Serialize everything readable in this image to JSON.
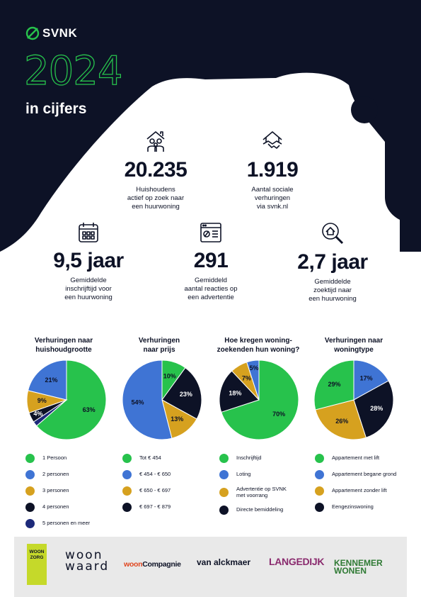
{
  "header": {
    "brand": "SVNK",
    "year": "2024",
    "subtitle": "in cijfers"
  },
  "stats": [
    {
      "icon": "family-house-icon",
      "value": "20.235",
      "label": "Huishoudens\nactief op zoek naar\neen huurwoning"
    },
    {
      "icon": "handshake-house-icon",
      "value": "1.919",
      "label": "Aantal sociale\nverhuringen\nvia svnk.nl"
    },
    {
      "icon": "calendar-icon",
      "value": "9,5 jaar",
      "label": "Gemiddelde\ninschrijftijd voor\neen huurwoning"
    },
    {
      "icon": "browser-window-icon",
      "value": "291",
      "label": "Gemiddeld\naantal reacties op\neen advertentie"
    },
    {
      "icon": "magnifier-house-icon",
      "value": "2,7 jaar",
      "label": "Gemiddelde\nzoektijd naar\neen huurwoning"
    }
  ],
  "colors": {
    "navy": "#0d1226",
    "green": "#27c24c",
    "blue": "#3f74d4",
    "gold": "#d6a11f",
    "darkblue": "#1d2a7a",
    "black": "#0d1226"
  },
  "chart_data": [
    {
      "type": "pie",
      "title": "Verhuringen naar\nhuishoudgrootte",
      "categories": [
        "1 Persoon",
        "2 personen",
        "3 personen",
        "4 personen",
        "5 personen en meer"
      ],
      "values": [
        63,
        21,
        9,
        4,
        2
      ],
      "labels": [
        "63%",
        "21%",
        "9%",
        "4%",
        ""
      ],
      "colors": [
        "#27c24c",
        "#3f74d4",
        "#d6a11f",
        "#0d1226",
        "#1d2a7a"
      ]
    },
    {
      "type": "pie",
      "title": "Verhuringen\nnaar prijs",
      "categories": [
        "Tot € 454",
        "€ 454 - € 650",
        "€ 650 - € 697",
        "€ 697 - € 879"
      ],
      "values": [
        10,
        54,
        13,
        23
      ],
      "labels": [
        "10%",
        "54%",
        "13%",
        "23%"
      ],
      "colors": [
        "#27c24c",
        "#3f74d4",
        "#d6a11f",
        "#0d1226"
      ]
    },
    {
      "type": "pie",
      "title": "Hoe kregen woning-\nzoekenden hun woning?",
      "categories": [
        "Inschrijftijd",
        "Loting",
        "Advertentie op SVNK\nmet voorrang",
        "Directe bemiddeling"
      ],
      "values": [
        70,
        5,
        7,
        18
      ],
      "labels": [
        "70%",
        "5%",
        "7%",
        "18%"
      ],
      "colors": [
        "#27c24c",
        "#3f74d4",
        "#d6a11f",
        "#0d1226"
      ]
    },
    {
      "type": "pie",
      "title": "Verhuringen naar\nwoningtype",
      "categories": [
        "Appartement met lift",
        "Appartement begane grond",
        "Appartement zonder lift",
        "Eengezinswoning"
      ],
      "values": [
        29,
        17,
        26,
        28
      ],
      "labels": [
        "29%",
        "17%",
        "26%",
        "28%"
      ],
      "colors": [
        "#27c24c",
        "#3f74d4",
        "#d6a11f",
        "#0d1226"
      ],
      "order": [
        1,
        0,
        2,
        3
      ]
    }
  ],
  "footer": {
    "logos": [
      {
        "name": "woonzorg-logo",
        "text": "WOON\nZORG"
      },
      {
        "name": "woon-waard-logo",
        "text": "woon\nwaard"
      },
      {
        "name": "wooncompagnie-logo",
        "text": "woonCompagnie"
      },
      {
        "name": "van-alckmaer-logo",
        "text": "van alckmaer"
      },
      {
        "name": "langedijk-logo",
        "text": "LANGEDIJK"
      },
      {
        "name": "kennemer-wonen-logo",
        "text": "KENNEMER\nWONEN"
      }
    ]
  }
}
